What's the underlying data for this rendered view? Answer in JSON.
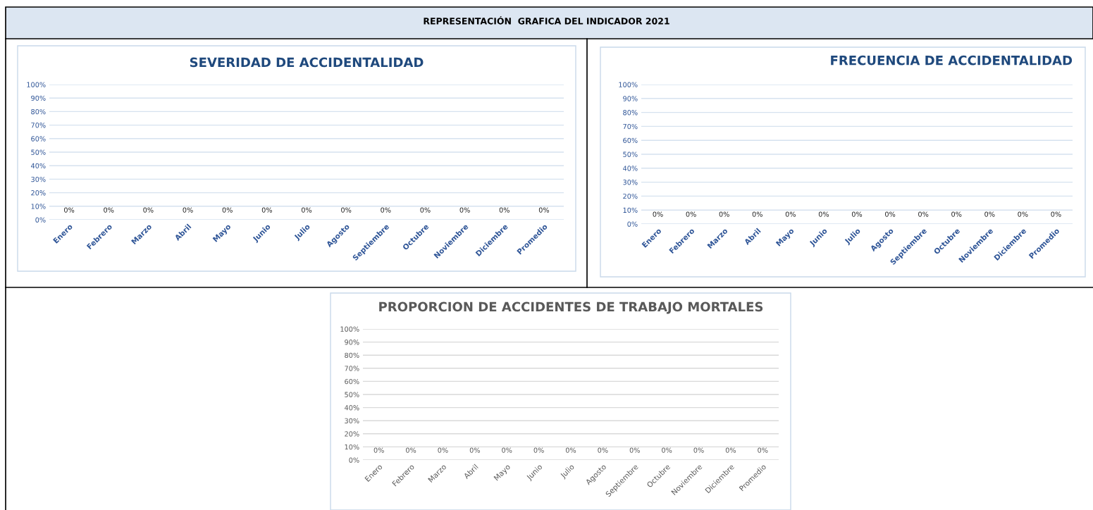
{
  "chart_data": [
    {
      "type": "bar",
      "title": "SEVERIDAD DE ACCIDENTALIDAD",
      "annotations": [
        "REPRESENTACIÓN  GRAFICA DEL INDICADOR 2021"
      ],
      "categories": [
        "Enero",
        "Febrero",
        "Marzo",
        "Abril",
        "Mayo",
        "Junio",
        "Julio",
        "Agosto",
        "Septiembre",
        "Octubre",
        "Noviembre",
        "Diciembre",
        "Promedio"
      ],
      "values": [
        0,
        0,
        0,
        0,
        0,
        0,
        0,
        0,
        0,
        0,
        0,
        0,
        0
      ],
      "value_labels": [
        "0%",
        "0%",
        "0%",
        "0%",
        "0%",
        "0%",
        "0%",
        "0%",
        "0%",
        "0%",
        "0%",
        "0%",
        "0%"
      ],
      "ylim": [
        0,
        100
      ],
      "yticks": [
        {
          "value": 0,
          "label": "0%"
        },
        {
          "value": 10,
          "label": "10%"
        },
        {
          "value": 20,
          "label": "20%"
        },
        {
          "value": 30,
          "label": "30%"
        },
        {
          "value": 40,
          "label": "40%"
        },
        {
          "value": 50,
          "label": "50%"
        },
        {
          "value": 60,
          "label": "60%"
        },
        {
          "value": 70,
          "label": "70%"
        },
        {
          "value": 80,
          "label": "80%"
        },
        {
          "value": 90,
          "label": "90%"
        },
        {
          "value": 100,
          "label": "100%"
        }
      ],
      "grid": "y"
    },
    {
      "type": "bar",
      "title": "FRECUENCIA DE ACCIDENTALIDAD",
      "categories": [
        "Enero",
        "Febrero",
        "Marzo",
        "Abril",
        "Mayo",
        "Junio",
        "Julio",
        "Agosto",
        "Septiembre",
        "Octubre",
        "Noviembre",
        "Diciembre",
        "Promedio"
      ],
      "values": [
        0,
        0,
        0,
        0,
        0,
        0,
        0,
        0,
        0,
        0,
        0,
        0,
        0
      ],
      "value_labels": [
        "0%",
        "0%",
        "0%",
        "0%",
        "0%",
        "0%",
        "0%",
        "0%",
        "0%",
        "0%",
        "0%",
        "0%",
        "0%"
      ],
      "ylim": [
        0,
        100
      ],
      "yticks": [
        {
          "value": 0,
          "label": "0%"
        },
        {
          "value": 10,
          "label": "10%"
        },
        {
          "value": 20,
          "label": "20%"
        },
        {
          "value": 30,
          "label": "30%"
        },
        {
          "value": 40,
          "label": "40%"
        },
        {
          "value": 50,
          "label": "50%"
        },
        {
          "value": 60,
          "label": "60%"
        },
        {
          "value": 70,
          "label": "70%"
        },
        {
          "value": 80,
          "label": "80%"
        },
        {
          "value": 90,
          "label": "90%"
        },
        {
          "value": 100,
          "label": "100%"
        }
      ],
      "grid": "y"
    },
    {
      "type": "bar",
      "title": "PROPORCION DE ACCIDENTES DE TRABAJO MORTALES",
      "categories": [
        "Enero",
        "Febrero",
        "Marzo",
        "Abril",
        "Mayo",
        "Junio",
        "Julio",
        "Agosto",
        "Septiembre",
        "Octubre",
        "Noviembre",
        "Diciembre",
        "Promedio"
      ],
      "values": [
        0,
        0,
        0,
        0,
        0,
        0,
        0,
        0,
        0,
        0,
        0,
        0,
        0
      ],
      "value_labels": [
        "0%",
        "0%",
        "0%",
        "0%",
        "0%",
        "0%",
        "0%",
        "0%",
        "0%",
        "0%",
        "0%",
        "0%",
        "0%"
      ],
      "ylim": [
        0,
        100
      ],
      "yticks": [
        {
          "value": 0,
          "label": "0%"
        },
        {
          "value": 10,
          "label": "10%"
        },
        {
          "value": 20,
          "label": "20%"
        },
        {
          "value": 30,
          "label": "30%"
        },
        {
          "value": 40,
          "label": "40%"
        },
        {
          "value": 50,
          "label": "50%"
        },
        {
          "value": 60,
          "label": "60%"
        },
        {
          "value": 70,
          "label": "70%"
        },
        {
          "value": 80,
          "label": "80%"
        },
        {
          "value": 90,
          "label": "90%"
        },
        {
          "value": 100,
          "label": "100%"
        }
      ],
      "grid": "y"
    }
  ]
}
